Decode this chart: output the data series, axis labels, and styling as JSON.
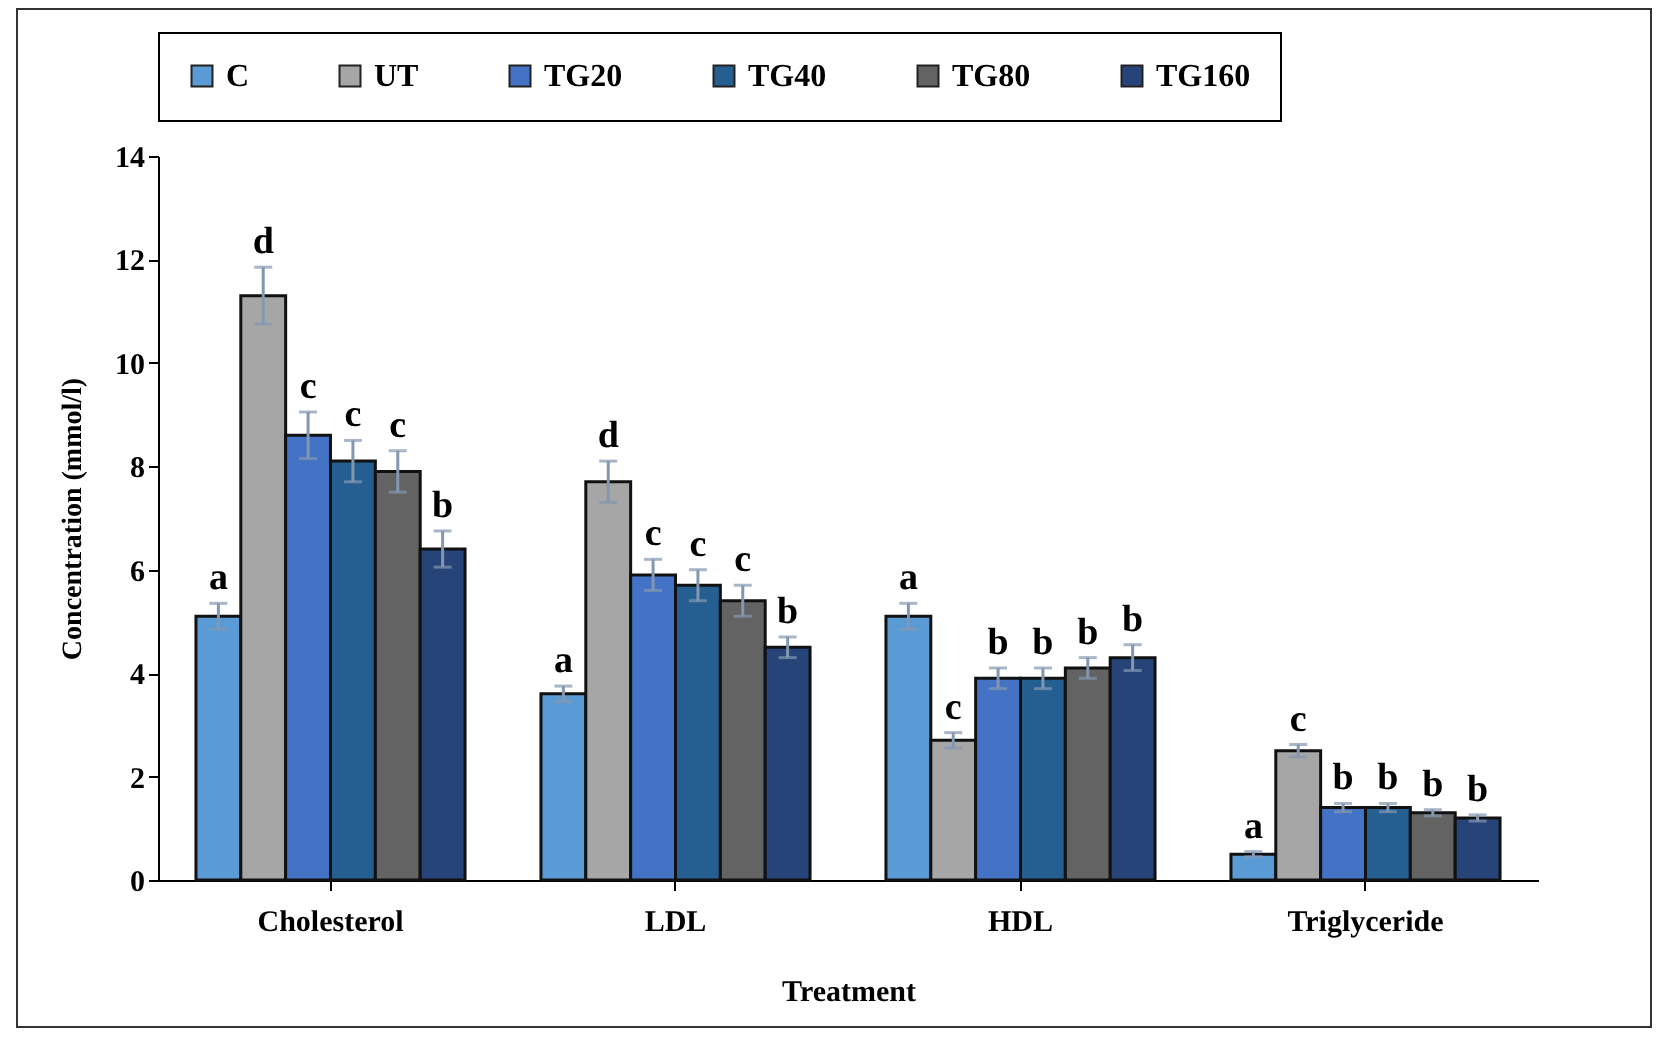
{
  "chart_data": {
    "type": "bar",
    "xlabel": "Treatment",
    "ylabel": "Concentration (mmol/l)",
    "categories": [
      "Cholesterol",
      "LDL",
      "HDL",
      "Triglyceride"
    ],
    "series": [
      {
        "name": "C",
        "color": "#5b9bd5",
        "values": [
          5.1,
          3.6,
          5.1,
          0.5
        ],
        "errors": [
          0.25,
          0.15,
          0.25,
          0.05
        ],
        "value_labels": [
          "a",
          "a",
          "a",
          "a"
        ]
      },
      {
        "name": "UT",
        "color": "#a6a6a6",
        "values": [
          11.3,
          7.7,
          2.7,
          2.5
        ],
        "errors": [
          0.55,
          0.4,
          0.15,
          0.12
        ],
        "value_labels": [
          "d",
          "d",
          "c",
          "c"
        ]
      },
      {
        "name": "TG20",
        "color": "#4472c4",
        "values": [
          8.6,
          5.9,
          3.9,
          1.4
        ],
        "errors": [
          0.45,
          0.3,
          0.2,
          0.08
        ],
        "value_labels": [
          "c",
          "c",
          "b",
          "b"
        ]
      },
      {
        "name": "TG40",
        "color": "#255e91",
        "values": [
          8.1,
          5.7,
          3.9,
          1.4
        ],
        "errors": [
          0.4,
          0.3,
          0.2,
          0.08
        ],
        "value_labels": [
          "c",
          "c",
          "b",
          "b"
        ]
      },
      {
        "name": "TG80",
        "color": "#636363",
        "values": [
          7.9,
          5.4,
          4.1,
          1.3
        ],
        "errors": [
          0.4,
          0.3,
          0.2,
          0.06
        ],
        "value_labels": [
          "c",
          "c",
          "b",
          "b"
        ]
      },
      {
        "name": "TG160",
        "color": "#264478",
        "values": [
          6.4,
          4.5,
          4.3,
          1.2
        ],
        "errors": [
          0.35,
          0.2,
          0.25,
          0.06
        ],
        "value_labels": [
          "b",
          "b",
          "b",
          "b"
        ]
      }
    ],
    "ylim": [
      0,
      14
    ],
    "yticks": [
      0,
      2,
      4,
      6,
      8,
      10,
      12,
      14
    ],
    "grid": false,
    "legend": "top"
  }
}
